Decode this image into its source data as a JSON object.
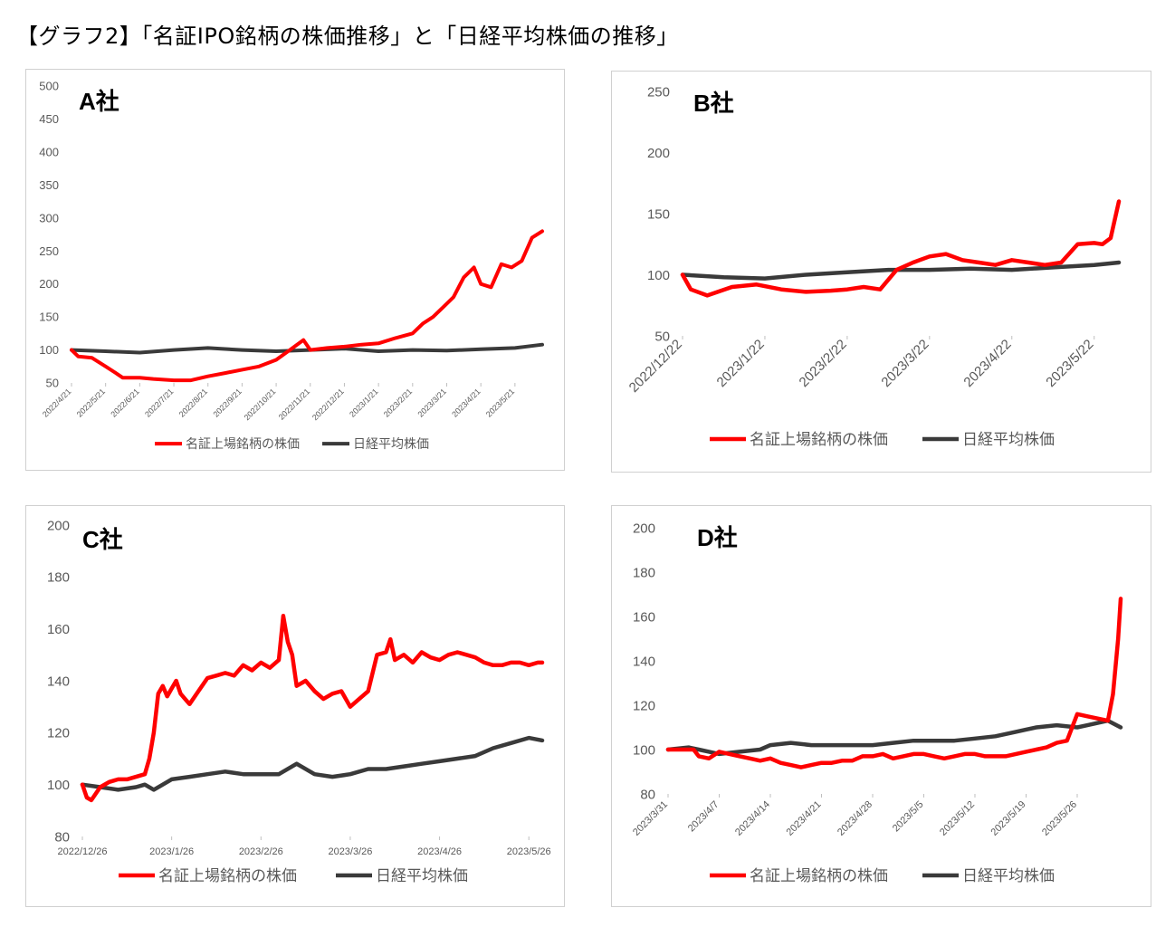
{
  "page_title": "【グラフ2】「名証IPO銘柄の株価推移」と「日経平均株価の推移」",
  "colors": {
    "ipo_series": "#ff0000",
    "nikkei_series": "#3a3a3a",
    "axis_text": "#595959",
    "panel_border": "#d0d0d0"
  },
  "legend": {
    "series1": "名証上場銘柄の株価",
    "series2": "日経平均株価"
  },
  "chart_data": [
    {
      "type": "line",
      "company": "A社",
      "ylim": [
        50,
        500
      ],
      "yticks": [
        50,
        100,
        150,
        200,
        250,
        300,
        350,
        400,
        450,
        500
      ],
      "x_tick_labels": [
        "2022/4/21",
        "2022/5/21",
        "2022/6/21",
        "2022/7/21",
        "2022/8/21",
        "2022/9/21",
        "2022/10/21",
        "2022/11/21",
        "2022/12/21",
        "2023/1/21",
        "2023/2/21",
        "2023/3/21",
        "2023/4/21",
        "2023/5/21"
      ],
      "x_range": [
        0,
        13.8
      ],
      "series": [
        {
          "name": "名証上場銘柄の株価",
          "points": [
            [
              0,
              100
            ],
            [
              0.2,
              90
            ],
            [
              0.6,
              88
            ],
            [
              1,
              75
            ],
            [
              1.3,
              65
            ],
            [
              1.5,
              58
            ],
            [
              2,
              58
            ],
            [
              2.4,
              56
            ],
            [
              3,
              54
            ],
            [
              3.5,
              54
            ],
            [
              4,
              60
            ],
            [
              4.5,
              65
            ],
            [
              5,
              70
            ],
            [
              5.5,
              75
            ],
            [
              6,
              85
            ],
            [
              6.4,
              100
            ],
            [
              6.8,
              115
            ],
            [
              7,
              100
            ],
            [
              7.5,
              103
            ],
            [
              8,
              105
            ],
            [
              8.5,
              108
            ],
            [
              9,
              110
            ],
            [
              9.5,
              118
            ],
            [
              10,
              125
            ],
            [
              10.3,
              140
            ],
            [
              10.6,
              150
            ],
            [
              10.9,
              165
            ],
            [
              11.2,
              180
            ],
            [
              11.5,
              210
            ],
            [
              11.8,
              225
            ],
            [
              12,
              200
            ],
            [
              12.3,
              195
            ],
            [
              12.6,
              230
            ],
            [
              12.9,
              225
            ],
            [
              13.2,
              235
            ],
            [
              13.5,
              270
            ],
            [
              13.8,
              280
            ]
          ]
        },
        {
          "name": "日経平均株価",
          "points": [
            [
              0,
              100
            ],
            [
              1,
              98
            ],
            [
              2,
              96
            ],
            [
              3,
              100
            ],
            [
              4,
              103
            ],
            [
              5,
              100
            ],
            [
              6,
              98
            ],
            [
              7,
              100
            ],
            [
              8,
              102
            ],
            [
              9,
              98
            ],
            [
              10,
              100
            ],
            [
              11,
              99
            ],
            [
              12,
              101
            ],
            [
              13,
              103
            ],
            [
              13.8,
              108
            ]
          ]
        }
      ],
      "extra_series_points_note": ""
    },
    {
      "type": "line",
      "company": "B社",
      "ylim": [
        50,
        250
      ],
      "yticks": [
        50,
        100,
        150,
        200,
        250
      ],
      "x_tick_labels": [
        "2022/12/22",
        "2023/1/22",
        "2023/2/22",
        "2023/3/22",
        "2023/4/22",
        "2023/5/22"
      ],
      "x_range": [
        0,
        5.3
      ],
      "series": [
        {
          "name": "名証上場銘柄の株価",
          "points": [
            [
              0,
              100
            ],
            [
              0.1,
              88
            ],
            [
              0.3,
              83
            ],
            [
              0.6,
              90
            ],
            [
              0.9,
              92
            ],
            [
              1.2,
              88
            ],
            [
              1.5,
              86
            ],
            [
              1.8,
              87
            ],
            [
              2,
              88
            ],
            [
              2.2,
              90
            ],
            [
              2.4,
              88
            ],
            [
              2.6,
              104
            ],
            [
              2.8,
              110
            ],
            [
              3,
              115
            ],
            [
              3.2,
              117
            ],
            [
              3.4,
              112
            ],
            [
              3.6,
              110
            ],
            [
              3.8,
              108
            ],
            [
              4,
              112
            ],
            [
              4.2,
              110
            ],
            [
              4.4,
              108
            ],
            [
              4.6,
              110
            ],
            [
              4.8,
              125
            ],
            [
              5,
              126
            ],
            [
              5.1,
              125
            ],
            [
              5.2,
              130
            ],
            [
              5.3,
              160
            ]
          ]
        },
        {
          "name": "日経平均株価",
          "points": [
            [
              0,
              100
            ],
            [
              0.5,
              98
            ],
            [
              1,
              97
            ],
            [
              1.5,
              100
            ],
            [
              2,
              102
            ],
            [
              2.5,
              104
            ],
            [
              3,
              104
            ],
            [
              3.5,
              105
            ],
            [
              4,
              104
            ],
            [
              4.5,
              106
            ],
            [
              5,
              108
            ],
            [
              5.3,
              110
            ]
          ]
        }
      ]
    },
    {
      "type": "line",
      "company": "C社",
      "ylim": [
        80,
        200
      ],
      "yticks": [
        80,
        100,
        120,
        140,
        160,
        180,
        200
      ],
      "x_tick_labels": [
        "2022/12/26",
        "2023/1/26",
        "2023/2/26",
        "2023/3/26",
        "2023/4/26",
        "2023/5/26"
      ],
      "x_range": [
        0,
        5.15
      ],
      "series": [
        {
          "name": "名証上場銘柄の株価",
          "points": [
            [
              0,
              100
            ],
            [
              0.05,
              95
            ],
            [
              0.1,
              94
            ],
            [
              0.2,
              99
            ],
            [
              0.3,
              101
            ],
            [
              0.4,
              102
            ],
            [
              0.5,
              102
            ],
            [
              0.6,
              103
            ],
            [
              0.7,
              104
            ],
            [
              0.75,
              110
            ],
            [
              0.8,
              120
            ],
            [
              0.85,
              135
            ],
            [
              0.9,
              138
            ],
            [
              0.95,
              134
            ],
            [
              1,
              137
            ],
            [
              1.05,
              140
            ],
            [
              1.1,
              135
            ],
            [
              1.15,
              133
            ],
            [
              1.2,
              131
            ],
            [
              1.3,
              136
            ],
            [
              1.4,
              141
            ],
            [
              1.5,
              142
            ],
            [
              1.6,
              143
            ],
            [
              1.7,
              142
            ],
            [
              1.8,
              146
            ],
            [
              1.9,
              144
            ],
            [
              2,
              147
            ],
            [
              2.1,
              145
            ],
            [
              2.2,
              148
            ],
            [
              2.25,
              165
            ],
            [
              2.3,
              155
            ],
            [
              2.35,
              150
            ],
            [
              2.4,
              138
            ],
            [
              2.5,
              140
            ],
            [
              2.6,
              136
            ],
            [
              2.7,
              133
            ],
            [
              2.8,
              135
            ],
            [
              2.9,
              136
            ],
            [
              3,
              130
            ],
            [
              3.1,
              133
            ],
            [
              3.2,
              136
            ],
            [
              3.3,
              150
            ],
            [
              3.4,
              151
            ],
            [
              3.45,
              156
            ],
            [
              3.5,
              148
            ],
            [
              3.6,
              150
            ],
            [
              3.7,
              147
            ],
            [
              3.8,
              151
            ],
            [
              3.9,
              149
            ],
            [
              4,
              148
            ],
            [
              4.1,
              150
            ],
            [
              4.2,
              151
            ],
            [
              4.3,
              150
            ],
            [
              4.4,
              149
            ],
            [
              4.5,
              147
            ],
            [
              4.6,
              146
            ],
            [
              4.7,
              146
            ],
            [
              4.8,
              147
            ],
            [
              4.9,
              147
            ],
            [
              5,
              146
            ],
            [
              5.1,
              147
            ],
            [
              5.15,
              147
            ]
          ]
        },
        {
          "name": "日経平均株価",
          "points": [
            [
              0,
              100
            ],
            [
              0.2,
              99
            ],
            [
              0.4,
              98
            ],
            [
              0.6,
              99
            ],
            [
              0.7,
              100
            ],
            [
              0.8,
              98
            ],
            [
              0.9,
              100
            ],
            [
              1,
              102
            ],
            [
              1.2,
              103
            ],
            [
              1.4,
              104
            ],
            [
              1.6,
              105
            ],
            [
              1.8,
              104
            ],
            [
              2,
              104
            ],
            [
              2.2,
              104
            ],
            [
              2.4,
              108
            ],
            [
              2.6,
              104
            ],
            [
              2.8,
              103
            ],
            [
              3,
              104
            ],
            [
              3.2,
              106
            ],
            [
              3.4,
              106
            ],
            [
              3.6,
              107
            ],
            [
              3.8,
              108
            ],
            [
              4,
              109
            ],
            [
              4.2,
              110
            ],
            [
              4.4,
              111
            ],
            [
              4.6,
              114
            ],
            [
              4.8,
              116
            ],
            [
              5,
              118
            ],
            [
              5.15,
              117
            ]
          ]
        }
      ]
    },
    {
      "type": "line",
      "company": "D社",
      "ylim": [
        80,
        200
      ],
      "yticks": [
        80,
        100,
        120,
        140,
        160,
        180,
        200
      ],
      "x_tick_labels": [
        "2023/3/31",
        "2023/4/7",
        "2023/4/14",
        "2023/4/21",
        "2023/4/28",
        "2023/5/5",
        "2023/5/12",
        "2023/5/19",
        "2023/5/26"
      ],
      "x_range": [
        0,
        8.85
      ],
      "series": [
        {
          "name": "名証上場銘柄の株価",
          "points": [
            [
              0,
              100
            ],
            [
              0.3,
              100
            ],
            [
              0.5,
              100
            ],
            [
              0.6,
              97
            ],
            [
              0.8,
              96
            ],
            [
              1,
              99
            ],
            [
              1.2,
              98
            ],
            [
              1.4,
              97
            ],
            [
              1.6,
              96
            ],
            [
              1.8,
              95
            ],
            [
              2,
              96
            ],
            [
              2.2,
              94
            ],
            [
              2.4,
              93
            ],
            [
              2.6,
              92
            ],
            [
              2.8,
              93
            ],
            [
              3,
              94
            ],
            [
              3.2,
              94
            ],
            [
              3.4,
              95
            ],
            [
              3.6,
              95
            ],
            [
              3.8,
              97
            ],
            [
              4,
              97
            ],
            [
              4.2,
              98
            ],
            [
              4.4,
              96
            ],
            [
              4.6,
              97
            ],
            [
              4.8,
              98
            ],
            [
              5,
              98
            ],
            [
              5.2,
              97
            ],
            [
              5.4,
              96
            ],
            [
              5.6,
              97
            ],
            [
              5.8,
              98
            ],
            [
              6,
              98
            ],
            [
              6.2,
              97
            ],
            [
              6.4,
              97
            ],
            [
              6.6,
              97
            ],
            [
              6.8,
              98
            ],
            [
              7,
              99
            ],
            [
              7.2,
              100
            ],
            [
              7.4,
              101
            ],
            [
              7.6,
              103
            ],
            [
              7.8,
              104
            ],
            [
              8,
              116
            ],
            [
              8.2,
              115
            ],
            [
              8.4,
              114
            ],
            [
              8.6,
              113
            ],
            [
              8.7,
              125
            ],
            [
              8.8,
              150
            ],
            [
              8.85,
              168
            ]
          ]
        },
        {
          "name": "日経平均株価",
          "points": [
            [
              0,
              100
            ],
            [
              0.4,
              101
            ],
            [
              0.6,
              100
            ],
            [
              0.8,
              99
            ],
            [
              1,
              98
            ],
            [
              1.4,
              99
            ],
            [
              1.8,
              100
            ],
            [
              2,
              102
            ],
            [
              2.4,
              103
            ],
            [
              2.8,
              102
            ],
            [
              3.2,
              102
            ],
            [
              3.6,
              102
            ],
            [
              4,
              102
            ],
            [
              4.4,
              103
            ],
            [
              4.8,
              104
            ],
            [
              5.2,
              104
            ],
            [
              5.6,
              104
            ],
            [
              6,
              105
            ],
            [
              6.4,
              106
            ],
            [
              6.8,
              108
            ],
            [
              7,
              109
            ],
            [
              7.2,
              110
            ],
            [
              7.6,
              111
            ],
            [
              8,
              110
            ],
            [
              8.2,
              111
            ],
            [
              8.4,
              112
            ],
            [
              8.6,
              113
            ],
            [
              8.85,
              110
            ]
          ]
        }
      ]
    }
  ]
}
